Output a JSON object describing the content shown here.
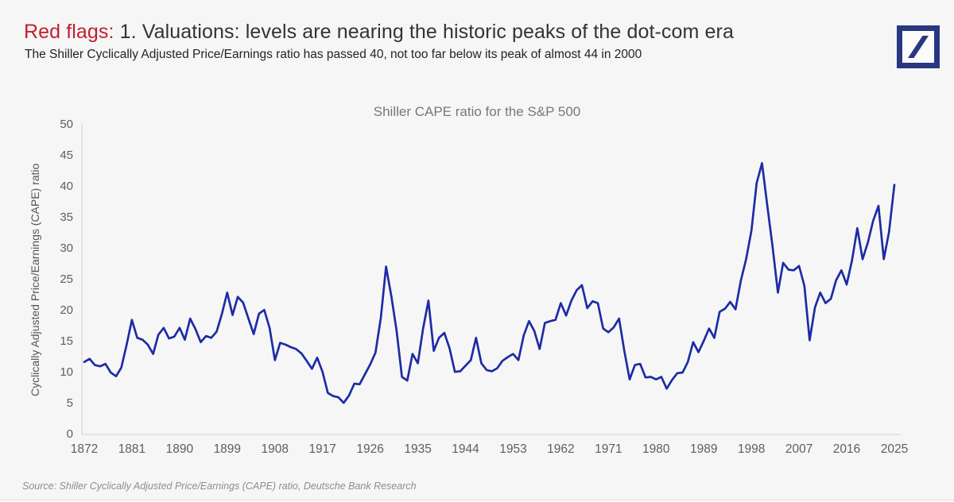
{
  "page": {
    "title_highlight": "Red flags:",
    "title_rest": " 1. Valuations: levels are nearing the historic peaks of the dot-com era",
    "subtitle": "The Shiller Cyclically Adjusted Price/Earnings ratio has passed 40, not too far below its peak of almost 44 in 2000",
    "source": "Source: Shiller Cyclically Adjusted Price/Earnings (CAPE) ratio, Deutsche Bank Research"
  },
  "colors": {
    "accent_red": "#c2202e",
    "line_blue": "#1d2ca3",
    "logo_navy": "#283780",
    "background": "#f6f6f7",
    "axis_line": "#d9d9d9",
    "tick_text": "#5e5e5e",
    "chart_title_gray": "#787878",
    "source_gray": "#8d8d8d"
  },
  "chart_data": {
    "type": "line",
    "title": "Shiller CAPE ratio for the S&P 500",
    "xlabel": "",
    "ylabel": "Cyclically Adjusted Price/Earnings (CAPE) ratio",
    "ylim": [
      0,
      50
    ],
    "ytick_step": 5,
    "xticks": [
      1872,
      1881,
      1890,
      1899,
      1908,
      1917,
      1926,
      1935,
      1944,
      1953,
      1962,
      1971,
      1980,
      1989,
      1998,
      2007,
      2016,
      2025
    ],
    "x_start": 1872,
    "x_step": 1,
    "grid": false,
    "legend": "none",
    "series": [
      {
        "name": "Shiller CAPE ratio",
        "values": [
          11.7,
          12.2,
          11.2,
          11.0,
          11.4,
          10.0,
          9.4,
          10.8,
          14.5,
          18.5,
          15.6,
          15.3,
          14.5,
          13.0,
          16.1,
          17.2,
          15.5,
          15.8,
          17.2,
          15.3,
          18.7,
          17.0,
          14.9,
          15.9,
          15.6,
          16.6,
          19.5,
          22.9,
          19.3,
          22.2,
          21.3,
          18.7,
          16.2,
          19.5,
          20.1,
          17.2,
          12.0,
          14.8,
          14.5,
          14.1,
          13.8,
          13.1,
          11.9,
          10.6,
          12.4,
          10.1,
          6.7,
          6.2,
          6.0,
          5.1,
          6.3,
          8.2,
          8.1,
          9.7,
          11.3,
          13.2,
          18.8,
          27.1,
          22.3,
          16.7,
          9.3,
          8.7,
          13.0,
          11.5,
          17.1,
          21.6,
          13.5,
          15.6,
          16.4,
          13.9,
          10.1,
          10.2,
          11.1,
          12.0,
          15.6,
          11.5,
          10.4,
          10.2,
          10.7,
          11.9,
          12.5,
          13.0,
          12.0,
          16.0,
          18.3,
          16.7,
          13.8,
          18.0,
          18.3,
          18.5,
          21.2,
          19.2,
          21.6,
          23.3,
          24.1,
          20.4,
          21.5,
          21.2,
          17.1,
          16.5,
          17.3,
          18.7,
          13.5,
          8.9,
          11.2,
          11.4,
          9.2,
          9.3,
          8.9,
          9.3,
          7.4,
          8.8,
          9.9,
          10.0,
          11.7,
          14.9,
          13.3,
          15.1,
          17.1,
          15.6,
          19.8,
          20.3,
          21.4,
          20.2,
          24.8,
          28.3,
          32.9,
          40.6,
          43.8,
          37.0,
          30.3,
          22.9,
          27.7,
          26.6,
          26.5,
          27.2,
          24.0,
          15.2,
          20.5,
          22.9,
          21.2,
          21.9,
          24.9,
          26.5,
          24.2,
          28.1,
          33.3,
          28.3,
          31.0,
          34.5,
          36.9,
          28.3,
          32.7,
          40.3
        ]
      }
    ]
  }
}
